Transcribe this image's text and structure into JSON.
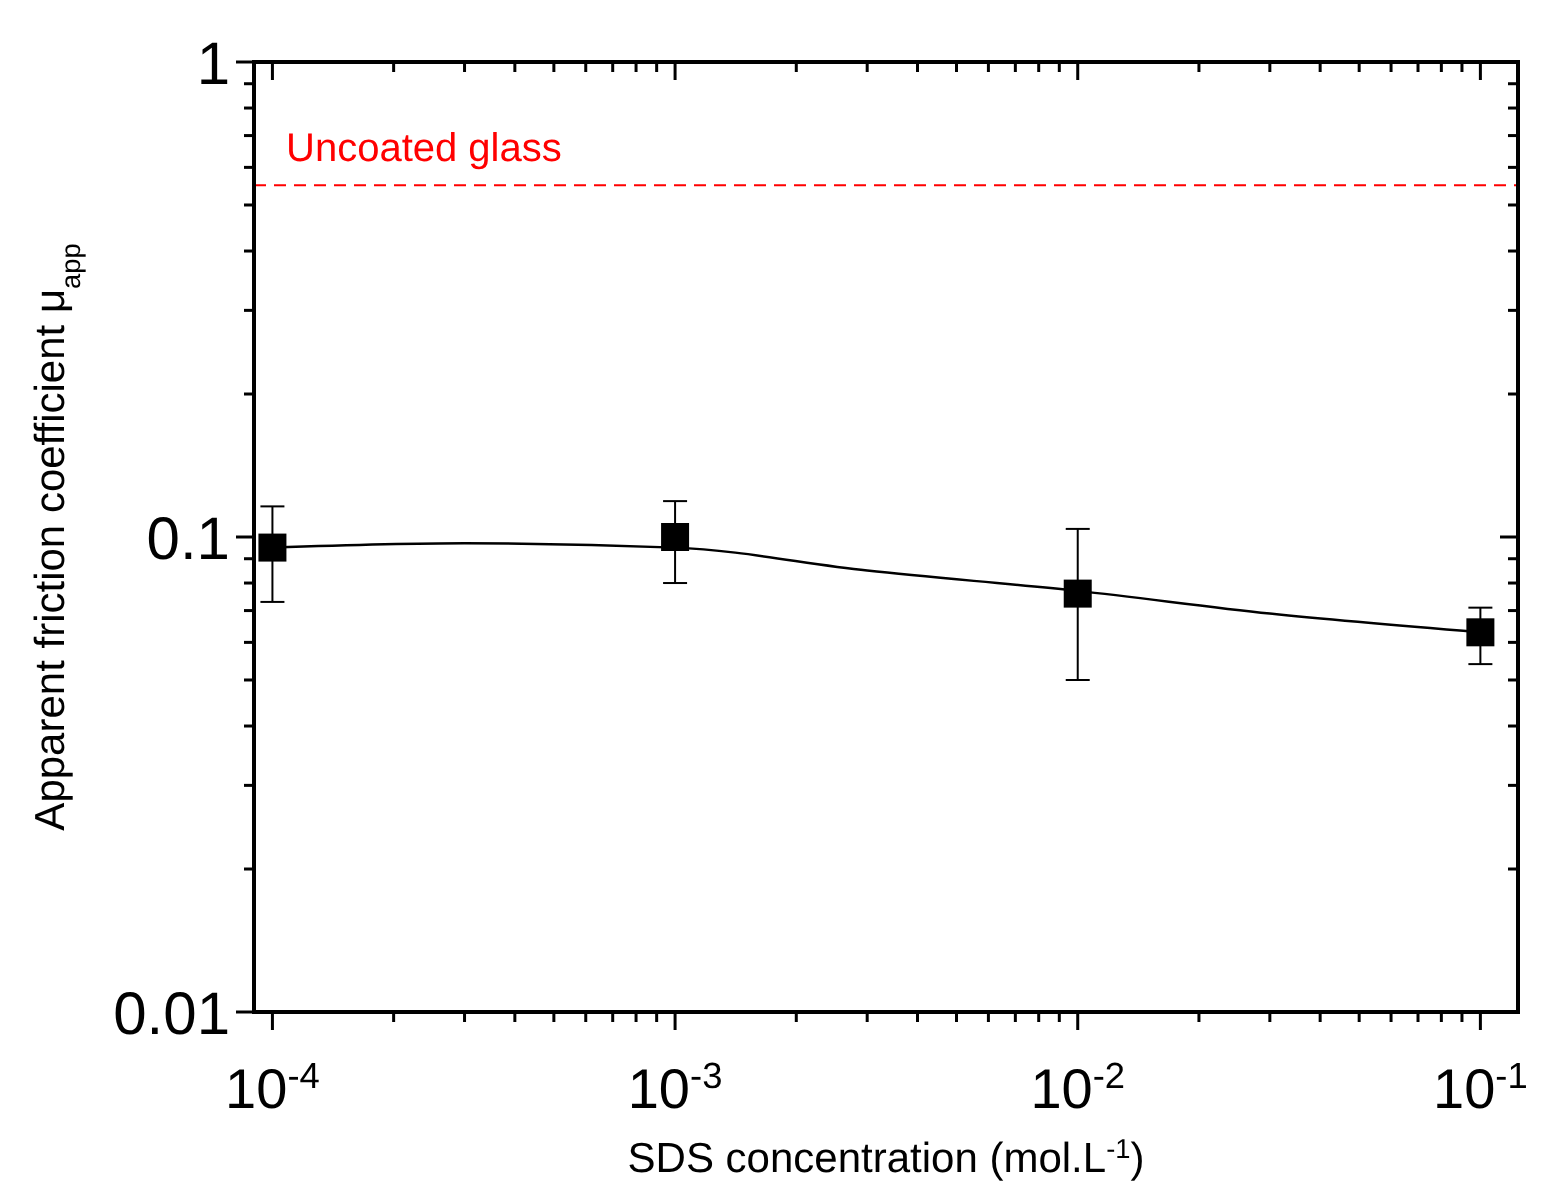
{
  "chart_data": {
    "type": "scatter",
    "xlabel": "SDS concentration (mol.L$^{-1}$)",
    "ylabel": "Apparent friction coefficient μ$_{app}$",
    "log": "xy",
    "grid": false,
    "xlim": [
      9e-05,
      0.124
    ],
    "ylim": [
      0.01,
      1
    ],
    "xticks": [
      {
        "value": 0.0001,
        "label": "10$^{-4}$"
      },
      {
        "value": 0.0002,
        "label": null
      },
      {
        "value": 0.0003,
        "label": null
      },
      {
        "value": 0.0004,
        "label": null
      },
      {
        "value": 0.0005,
        "label": null
      },
      {
        "value": 0.0006,
        "label": null
      },
      {
        "value": 0.0007,
        "label": null
      },
      {
        "value": 0.0008,
        "label": null
      },
      {
        "value": 0.0009,
        "label": null
      },
      {
        "value": 0.001,
        "label": "10$^{-3}$"
      },
      {
        "value": 0.002,
        "label": null
      },
      {
        "value": 0.003,
        "label": null
      },
      {
        "value": 0.004,
        "label": null
      },
      {
        "value": 0.005,
        "label": null
      },
      {
        "value": 0.006,
        "label": null
      },
      {
        "value": 0.007,
        "label": null
      },
      {
        "value": 0.008,
        "label": null
      },
      {
        "value": 0.009,
        "label": null
      },
      {
        "value": 0.01,
        "label": "10$^{-2}$"
      },
      {
        "value": 0.02,
        "label": null
      },
      {
        "value": 0.03,
        "label": null
      },
      {
        "value": 0.04,
        "label": null
      },
      {
        "value": 0.05,
        "label": null
      },
      {
        "value": 0.06,
        "label": null
      },
      {
        "value": 0.07,
        "label": null
      },
      {
        "value": 0.08,
        "label": null
      },
      {
        "value": 0.09,
        "label": null
      },
      {
        "value": 0.1,
        "label": "10$^{-1}$"
      }
    ],
    "yticks": [
      0.01,
      {
        "value": 0.02,
        "label": null
      },
      {
        "value": 0.03,
        "label": null
      },
      {
        "value": 0.04,
        "label": null
      },
      {
        "value": 0.05,
        "label": null
      },
      {
        "value": 0.06,
        "label": null
      },
      {
        "value": 0.07,
        "label": null
      },
      {
        "value": 0.08,
        "label": null
      },
      {
        "value": 0.09,
        "label": null
      },
      0.1,
      {
        "value": 0.2,
        "label": null
      },
      {
        "value": 0.3,
        "label": null
      },
      {
        "value": 0.4,
        "label": null
      },
      {
        "value": 0.5,
        "label": null
      },
      {
        "value": 0.6,
        "label": null
      },
      {
        "value": 0.7,
        "label": null
      },
      {
        "value": 0.8,
        "label": null
      },
      {
        "value": 0.9,
        "label": null
      },
      1
    ],
    "series": [
      {
        "type": "line",
        "color": "#000000",
        "marker": "none",
        "line_style": "solid",
        "x": [
          0.0001,
          0.0003,
          0.001,
          0.003,
          0.01,
          0.03,
          0.1
        ],
        "values": [
          0.095,
          0.097,
          0.095,
          0.085,
          0.077,
          0.069,
          0.063
        ]
      },
      {
        "color": "#000000",
        "marker": "square",
        "x": [
          0.0001,
          0.001,
          0.01,
          0.1
        ],
        "values": [
          0.095,
          0.1,
          0.076,
          0.063
        ],
        "errors": [
          [
            0.073,
            0.116
          ],
          [
            0.08,
            0.119
          ],
          [
            0.05,
            0.104
          ],
          [
            0.054,
            0.071
          ]
        ]
      }
    ],
    "ref_lines": [
      {
        "axis": "y",
        "value": 0.55,
        "label": "Uncoated glass",
        "color": "#ff0000",
        "line_style": "dashed"
      }
    ]
  }
}
